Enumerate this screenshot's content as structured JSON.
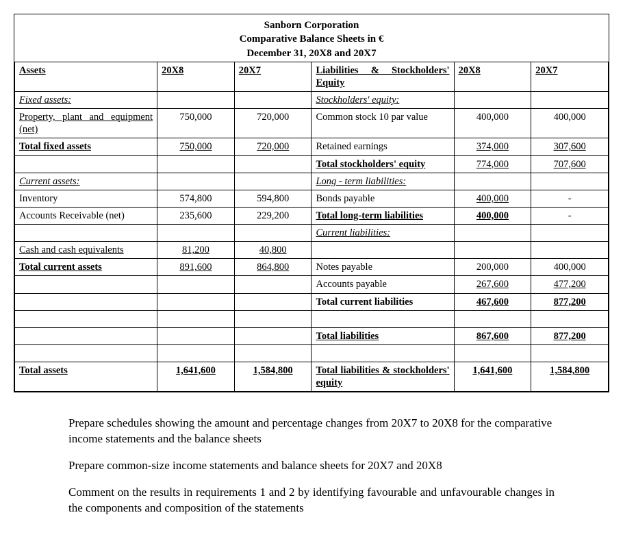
{
  "title": {
    "company": "Sanborn Corporation",
    "report": "Comparative Balance Sheets in €",
    "date": "December 31, 20X8 and 20X7"
  },
  "headers": {
    "assets": "Assets",
    "y1": "20X8",
    "y2": "20X7",
    "liab_eq": "Liabilities & Stockholders' Equity"
  },
  "left": {
    "fixed_hdr": "Fixed assets:",
    "ppe": "Property, plant and equipment (net)",
    "ppe_y1": "750,000",
    "ppe_y2": "720,000",
    "tfa": "Total fixed assets",
    "tfa_y1": "750,000",
    "tfa_y2": "720,000",
    "cur_hdr": "Current assets:",
    "inv": "Inventory",
    "inv_y1": "574,800",
    "inv_y2": "594,800",
    "ar": "Accounts Receivable (net)",
    "ar_y1": "235,600",
    "ar_y2": "229,200",
    "cash": "Cash and cash equivalents",
    "cash_y1": "81,200",
    "cash_y2": "40,800",
    "tca": "Total current assets",
    "tca_y1": "891,600",
    "tca_y2": "864,800",
    "ta": "Total assets",
    "ta_y1": "1,641,600",
    "ta_y2": "1,584,800"
  },
  "right": {
    "se_hdr": "Stockholders' equity:",
    "cs": "Common stock 10 par value",
    "cs_y1": "400,000",
    "cs_y2": "400,000",
    "re": "Retained earnings",
    "re_y1": "374,000",
    "re_y2": "307,600",
    "tse": "Total stockholders' equity",
    "tse_y1": "774,000",
    "tse_y2": "707,600",
    "lt_hdr": "Long - term liabilities:",
    "bp": "Bonds payable",
    "bp_y1": "400,000",
    "bp_y2": "-",
    "tlt": "Total long-term liabilities",
    "tlt_y1": "400,000",
    "tlt_y2": "-",
    "cl_hdr": "Current liabilities:",
    "np": "Notes payable",
    "np_y1": "200,000",
    "np_y2": "400,000",
    "ap": "Accounts payable",
    "ap_y1": "267,600",
    "ap_y2": "477,200",
    "tcl": "Total current liabilities",
    "tcl_y1": "467,600",
    "tcl_y2": "877,200",
    "tl": "Total liabilities",
    "tl_y1": "867,600",
    "tl_y2": "877,200",
    "tlse": "Total liabilities & stockholders' equity",
    "tlse_y1": "1,641,600",
    "tlse_y2": "1,584,800"
  },
  "instr": {
    "p1": "Prepare schedules showing the amount and percentage changes from 20X7 to 20X8 for the comparative income statements and the balance sheets",
    "p2": "Prepare common-size income statements and balance sheets for 20X7 and 20X8",
    "p3": "Comment on the results in requirements 1 and 2 by identifying favourable and unfavourable changes in the components and composition of the statements"
  }
}
